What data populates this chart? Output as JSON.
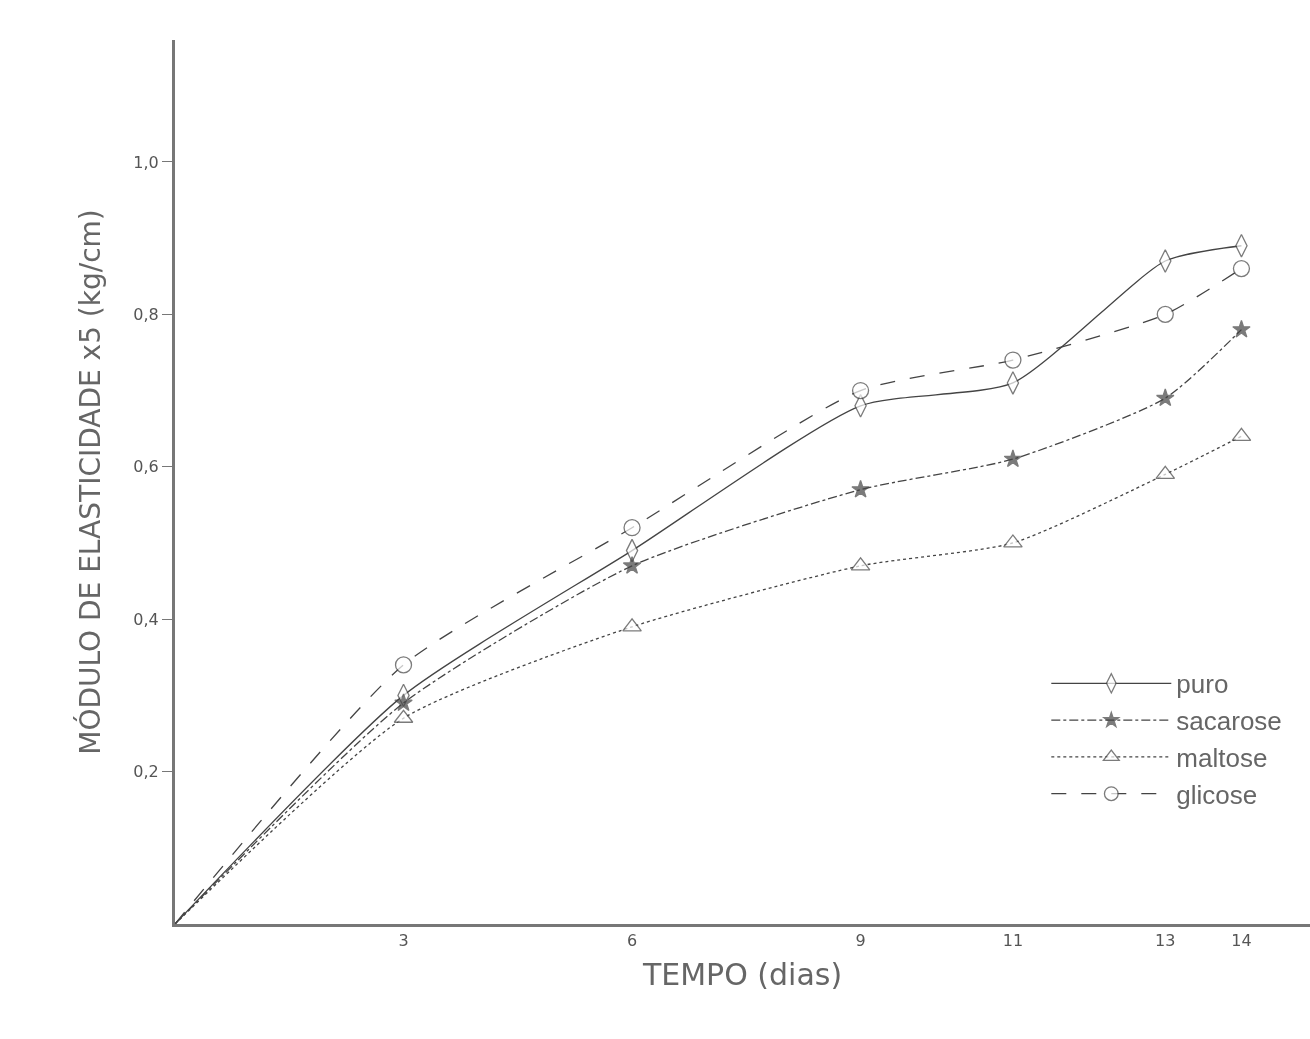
{
  "chart_data": {
    "type": "line",
    "xlabel": "TEMPO (dias)",
    "ylabel": "MÓDULO DE ELASTICIDADE x5 (kg/cm)",
    "x": [
      0,
      3,
      6,
      9,
      11,
      13,
      14
    ],
    "xlim": [
      0,
      14.9
    ],
    "xticks": [
      3,
      6,
      9,
      11,
      13,
      14
    ],
    "ylim": [
      0,
      1.16
    ],
    "yticks": [
      {
        "value": 0.2,
        "label": "0,2"
      },
      {
        "value": 0.4,
        "label": "0,4"
      },
      {
        "value": 0.6,
        "label": "0,6"
      },
      {
        "value": 0.8,
        "label": "0,8"
      },
      {
        "value": 1.0,
        "label": "1,0"
      }
    ],
    "grid": false,
    "legend": "bottom right",
    "series": [
      {
        "name": "puro",
        "color": "#444444",
        "marker": "diamond",
        "line_style": "solid",
        "values": [
          0,
          0.3,
          0.49,
          0.68,
          0.71,
          0.87,
          0.89
        ]
      },
      {
        "name": "sacarose",
        "color": "#444444",
        "marker": "star",
        "line_style": "dashdot",
        "values": [
          0,
          0.29,
          0.47,
          0.57,
          0.61,
          0.69,
          0.78
        ]
      },
      {
        "name": "maltose",
        "color": "#444444",
        "marker": "triangle",
        "line_style": "dotted",
        "values": [
          0,
          0.27,
          0.39,
          0.47,
          0.5,
          0.59,
          0.64
        ]
      },
      {
        "name": "glicose",
        "color": "#444444",
        "marker": "circle",
        "line_style": "dashed",
        "values": [
          0,
          0.34,
          0.52,
          0.7,
          0.74,
          0.8,
          0.86
        ]
      }
    ]
  }
}
